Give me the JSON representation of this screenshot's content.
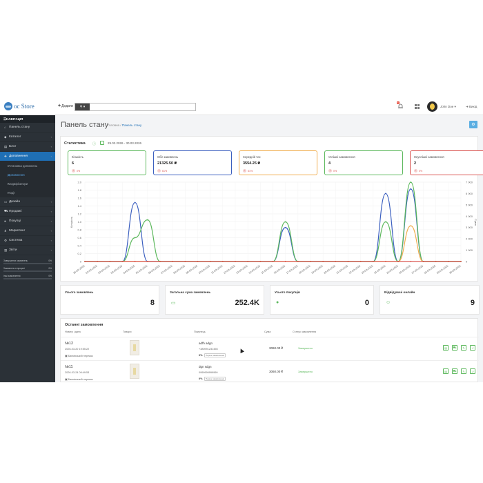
{
  "header": {
    "logo_text": "oc Store",
    "add_label": "Додати",
    "search_placeholder": "",
    "notif_count": "6",
    "user_name": "John Doe",
    "logout_label": "Вихід"
  },
  "sidebar": {
    "title": "НАВІГАЦІЯ",
    "items": [
      {
        "label": "Панель стану",
        "icon": "dashboard-icon",
        "arrow": false,
        "active": false
      },
      {
        "label": "Каталог",
        "icon": "tag-icon",
        "arrow": true,
        "active": false
      },
      {
        "label": "Блог",
        "icon": "book-icon",
        "arrow": true,
        "active": false
      },
      {
        "label": "Доповнення",
        "icon": "puzzle-icon",
        "arrow": true,
        "active": true
      }
    ],
    "subitems": [
      {
        "label": "Установка доповнень",
        "active": false
      },
      {
        "label": "Доповнення",
        "active": true
      },
      {
        "label": "Модифікатори",
        "active": false
      },
      {
        "label": "Події",
        "active": false
      }
    ],
    "items2": [
      {
        "label": "Дизайн",
        "icon": "monitor-icon"
      },
      {
        "label": "Продажі",
        "icon": "cart-icon"
      },
      {
        "label": "Покупці",
        "icon": "user-icon"
      },
      {
        "label": "Маркетинг",
        "icon": "share-icon"
      },
      {
        "label": "Система",
        "icon": "gear-icon"
      },
      {
        "label": "Звіти",
        "icon": "chart-icon"
      }
    ],
    "stats": [
      {
        "label": "Завершених замовлень",
        "pct": "0%"
      },
      {
        "label": "Замовлень в процесі",
        "pct": "0%"
      },
      {
        "label": "Інші замовлення",
        "pct": "0%"
      }
    ]
  },
  "page": {
    "title": "Панель стану",
    "crumb_home": "Головна",
    "crumb_sep": "/",
    "crumb_current": "Панель стану"
  },
  "stats": {
    "title": "Статистика",
    "date_range": "29.02.2026 - 30.03.2026",
    "kpis": [
      {
        "label": "Кількість",
        "value": "6",
        "change": "0%",
        "color": "#5cb85c"
      },
      {
        "label": "Обіг замовлень",
        "value": "21325.50 ₴",
        "change": "61%",
        "color": "#3b5fbf"
      },
      {
        "label": "Середній чек",
        "value": "3554.25 ₴",
        "change": "61%",
        "color": "#f0ad4e"
      },
      {
        "label": "Успішні замовлення",
        "value": "4",
        "change": "0%",
        "color": "#5cb85c"
      },
      {
        "label": "Неуспішні замовлення",
        "value": "2",
        "change": "0%",
        "color": "#d9534f"
      }
    ]
  },
  "chart_data": {
    "type": "line",
    "x": [
      "28-02-2026",
      "01-03-2026",
      "02-03-2026",
      "03-03-2026",
      "04-03-2026",
      "05-03-2026",
      "06-03-2026",
      "07-03-2026",
      "08-03-2026",
      "09-03-2026",
      "10-03-2026",
      "11-03-2026",
      "12-03-2026",
      "13-03-2026",
      "14-03-2026",
      "15-03-2026",
      "16-03-2026",
      "17-03-2026",
      "18-03-2026",
      "19-03-2026",
      "20-03-2026",
      "21-03-2026",
      "22-03-2026",
      "23-03-2026",
      "24-03-2026",
      "25-03-2026",
      "26-03-2026",
      "27-03-2026",
      "28-03-2026",
      "29-03-2026",
      "30-03-2026"
    ],
    "ylabel_left": "Кількість",
    "ylabel_right": "Сума",
    "ylim_left": [
      0,
      2
    ],
    "ylim_right": [
      0,
      7000
    ],
    "yticks_left": [
      "0",
      "0.2",
      "0.4",
      "0.6",
      "0.8",
      "1.0",
      "1.2",
      "1.4",
      "1.6",
      "1.8",
      "2.0"
    ],
    "yticks_right": [
      "0",
      "1 000",
      "2 000",
      "3 000",
      "4 000",
      "5 000",
      "6 000",
      "7 000"
    ],
    "series": [
      {
        "axis": "right",
        "color": "#3b5fbf",
        "values": [
          0,
          0,
          0,
          0,
          5200,
          0,
          0,
          0,
          0,
          0,
          0,
          0,
          0,
          0,
          0,
          0,
          3000,
          0,
          0,
          0,
          0,
          0,
          0,
          0,
          6000,
          0,
          6400,
          0,
          0,
          0,
          0
        ]
      },
      {
        "axis": "left",
        "color": "#5cb85c",
        "values": [
          0,
          0,
          0,
          0,
          0.6,
          1.05,
          0,
          0,
          0,
          0,
          0,
          0,
          0,
          0,
          0,
          0,
          1.0,
          0,
          0,
          0,
          0,
          0,
          0,
          0,
          1.0,
          0,
          2.0,
          0,
          0,
          0,
          0
        ]
      },
      {
        "axis": "left",
        "color": "#f0ad4e",
        "values": [
          0,
          0,
          0,
          0,
          0,
          0,
          0,
          0,
          0,
          0,
          0,
          0,
          0,
          0,
          0,
          0,
          0,
          0,
          0,
          0,
          0,
          0,
          0,
          0,
          0,
          0,
          0.9,
          0,
          0,
          0,
          0
        ]
      },
      {
        "axis": "left",
        "color": "#d9534f",
        "values": [
          0,
          0,
          0,
          0,
          0,
          0,
          0,
          0,
          0,
          0,
          0,
          0,
          0,
          0,
          0,
          0,
          0,
          0,
          0,
          0,
          0,
          0,
          0,
          0,
          0,
          0,
          0,
          0,
          0,
          0,
          0
        ]
      }
    ]
  },
  "summary": [
    {
      "label": "Усього замовлень",
      "value": "8",
      "icon": ""
    },
    {
      "label": "Загальна сума замовлень",
      "value": "252.4K",
      "icon": "card-icon"
    },
    {
      "label": "Усього покупців",
      "value": "0",
      "icon": "user-icon"
    },
    {
      "label": "Відвідувачі онлайн",
      "value": "9",
      "icon": "users-icon"
    }
  ],
  "orders": {
    "title": "Останні замовлення",
    "headers": [
      "Номер і дата",
      "Товари",
      "Покупець",
      "Сума",
      "Статус замовлення"
    ],
    "rows": [
      {
        "num": "№12",
        "date": "2026-03-20 19:55:22",
        "pay": "Банківський переказ",
        "customer": "adfh adgn",
        "phone": "+380991231455",
        "count": "0%",
        "tag": "Перше замовлення",
        "sum": "3060.00 ₴",
        "status": "Завершено"
      },
      {
        "num": "№11",
        "date": "2026-03-24 09:49:53",
        "pay": "Банківський переказ",
        "customer": "dgn sdgn",
        "phone": "0999999999999",
        "count": "0%",
        "tag": "Перше замовлення",
        "sum": "3060.00 ₴",
        "status": "Завершено"
      }
    ]
  }
}
